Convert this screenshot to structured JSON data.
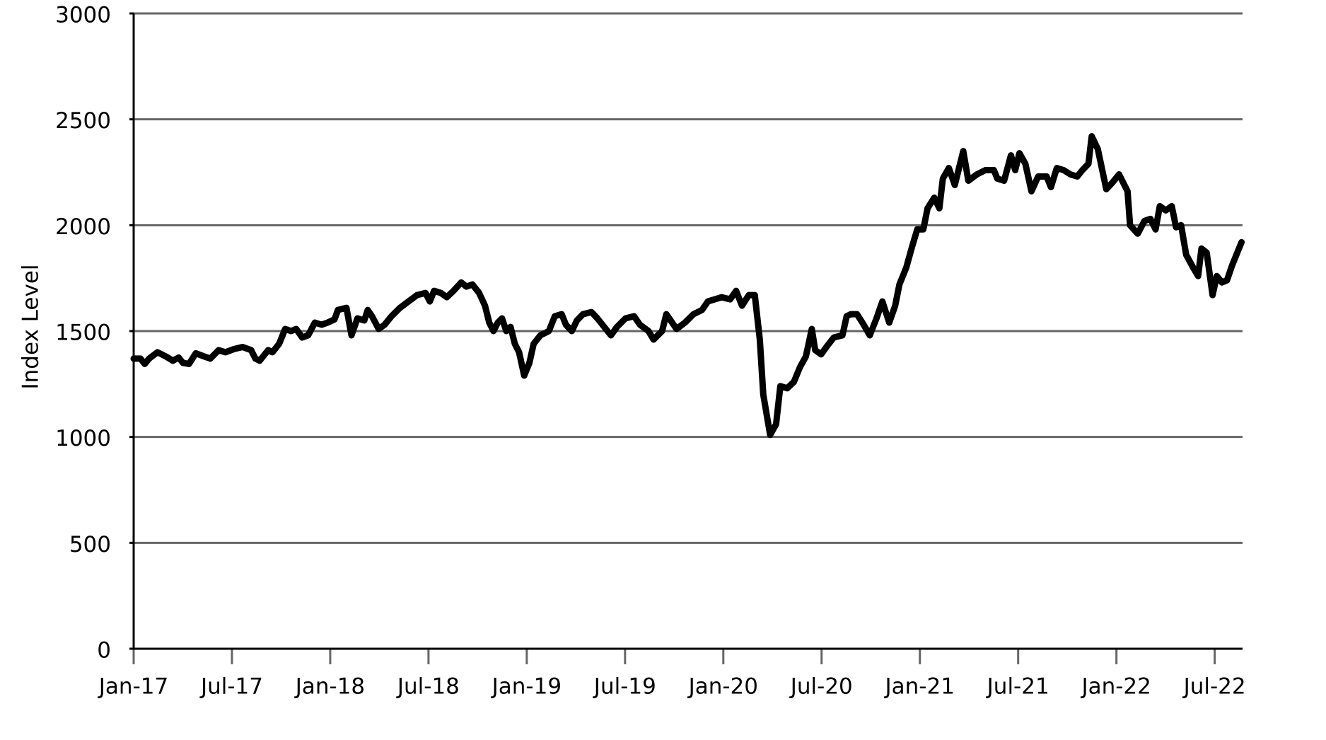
{
  "chart_data": {
    "type": "line",
    "y_label": "Index Level",
    "color": "#000000",
    "grid": true,
    "xlim": [
      0,
      67.7
    ],
    "xticks": [
      {
        "value": 0,
        "label": "Jan-17"
      },
      {
        "value": 6,
        "label": "Jul-17"
      },
      {
        "value": 12,
        "label": "Jan-18"
      },
      {
        "value": 18,
        "label": "Jul-18"
      },
      {
        "value": 24,
        "label": "Jan-19"
      },
      {
        "value": 30,
        "label": "Jul-19"
      },
      {
        "value": 36,
        "label": "Jan-20"
      },
      {
        "value": 42,
        "label": "Jul-20"
      },
      {
        "value": 48,
        "label": "Jan-21"
      },
      {
        "value": 54,
        "label": "Jul-21"
      },
      {
        "value": 60,
        "label": "Jan-22"
      },
      {
        "value": 66,
        "label": "Jul-22"
      }
    ],
    "ylim": [
      0,
      3000
    ],
    "yticks": [
      0,
      500,
      1000,
      1500,
      2000,
      2500,
      3000
    ],
    "x": [
      0,
      0.42,
      0.68,
      0.94,
      1.45,
      1.97,
      2.39,
      2.75,
      3.01,
      3.38,
      3.79,
      4.31,
      4.68,
      5.19,
      5.61,
      6.13,
      6.65,
      7.17,
      7.43,
      7.69,
      8.21,
      8.47,
      8.88,
      9.25,
      9.61,
      9.92,
      10.29,
      10.65,
      11.06,
      11.48,
      11.84,
      12.26,
      12.47,
      12.99,
      13.3,
      13.66,
      14.08,
      14.29,
      14.55,
      14.96,
      15.32,
      15.74,
      16.26,
      16.78,
      17.3,
      17.82,
      18.08,
      18.34,
      18.75,
      19.12,
      19.53,
      20.0,
      20.31,
      20.68,
      21.09,
      21.45,
      21.71,
      21.97,
      22.23,
      22.49,
      22.75,
      23.01,
      23.27,
      23.53,
      23.84,
      24.16,
      24.42,
      24.83,
      25.35,
      25.71,
      26.13,
      26.39,
      26.75,
      27.06,
      27.43,
      27.95,
      28.31,
      28.62,
      29.14,
      29.51,
      30.03,
      30.55,
      30.91,
      31.43,
      31.74,
      32.26,
      32.52,
      33.14,
      33.66,
      34.18,
      34.7,
      35.06,
      35.48,
      35.9,
      36.42,
      36.78,
      37.14,
      37.56,
      37.92,
      38.23,
      38.44,
      38.86,
      39.22,
      39.48,
      39.9,
      40.31,
      40.68,
      41.04,
      41.4,
      41.61,
      41.97,
      42.34,
      42.75,
      43.27,
      43.53,
      43.79,
      44.16,
      44.57,
      44.94,
      45.35,
      45.71,
      46.13,
      46.49,
      46.75,
      47.17,
      47.53,
      47.84,
      48.21,
      48.47,
      48.88,
      49.19,
      49.4,
      49.77,
      50.13,
      50.39,
      50.65,
      50.96,
      51.48,
      52.0,
      52.52,
      52.73,
      53.14,
      53.56,
      53.82,
      54.08,
      54.44,
      54.81,
      55.22,
      55.74,
      56.0,
      56.36,
      56.78,
      57.19,
      57.61,
      57.92,
      58.29,
      58.49,
      58.86,
      59.38,
      59.74,
      60.16,
      60.68,
      60.83,
      61.3,
      61.71,
      62.08,
      62.39,
      62.65,
      63.01,
      63.38,
      63.64,
      63.95,
      64.26,
      64.68,
      64.99,
      65.19,
      65.51,
      65.87,
      66.13,
      66.44,
      66.75,
      67.06,
      67.43,
      67.64
    ],
    "values": [
      1370,
      1370,
      1345,
      1370,
      1400,
      1380,
      1360,
      1375,
      1350,
      1345,
      1395,
      1380,
      1370,
      1410,
      1400,
      1415,
      1425,
      1410,
      1370,
      1360,
      1410,
      1400,
      1440,
      1510,
      1500,
      1510,
      1470,
      1480,
      1540,
      1530,
      1540,
      1555,
      1600,
      1610,
      1480,
      1560,
      1550,
      1600,
      1570,
      1510,
      1530,
      1570,
      1610,
      1640,
      1670,
      1680,
      1640,
      1690,
      1680,
      1660,
      1690,
      1730,
      1710,
      1720,
      1680,
      1620,
      1540,
      1500,
      1540,
      1560,
      1500,
      1520,
      1440,
      1400,
      1290,
      1350,
      1440,
      1480,
      1500,
      1570,
      1580,
      1530,
      1500,
      1550,
      1580,
      1590,
      1560,
      1530,
      1480,
      1520,
      1560,
      1570,
      1530,
      1500,
      1460,
      1500,
      1580,
      1510,
      1540,
      1580,
      1600,
      1640,
      1650,
      1660,
      1650,
      1690,
      1620,
      1670,
      1670,
      1460,
      1200,
      1010,
      1060,
      1240,
      1230,
      1260,
      1330,
      1380,
      1510,
      1410,
      1390,
      1430,
      1470,
      1480,
      1570,
      1580,
      1580,
      1530,
      1480,
      1560,
      1640,
      1540,
      1620,
      1720,
      1800,
      1900,
      1980,
      1980,
      2080,
      2130,
      2080,
      2220,
      2270,
      2190,
      2270,
      2350,
      2210,
      2240,
      2260,
      2260,
      2220,
      2210,
      2330,
      2260,
      2340,
      2290,
      2160,
      2230,
      2230,
      2180,
      2270,
      2260,
      2240,
      2230,
      2260,
      2290,
      2420,
      2360,
      2170,
      2200,
      2240,
      2160,
      2000,
      1960,
      2020,
      2030,
      1980,
      2090,
      2070,
      2090,
      1990,
      2000,
      1860,
      1800,
      1760,
      1890,
      1870,
      1670,
      1760,
      1730,
      1740,
      1810,
      1880,
      1920
    ]
  }
}
